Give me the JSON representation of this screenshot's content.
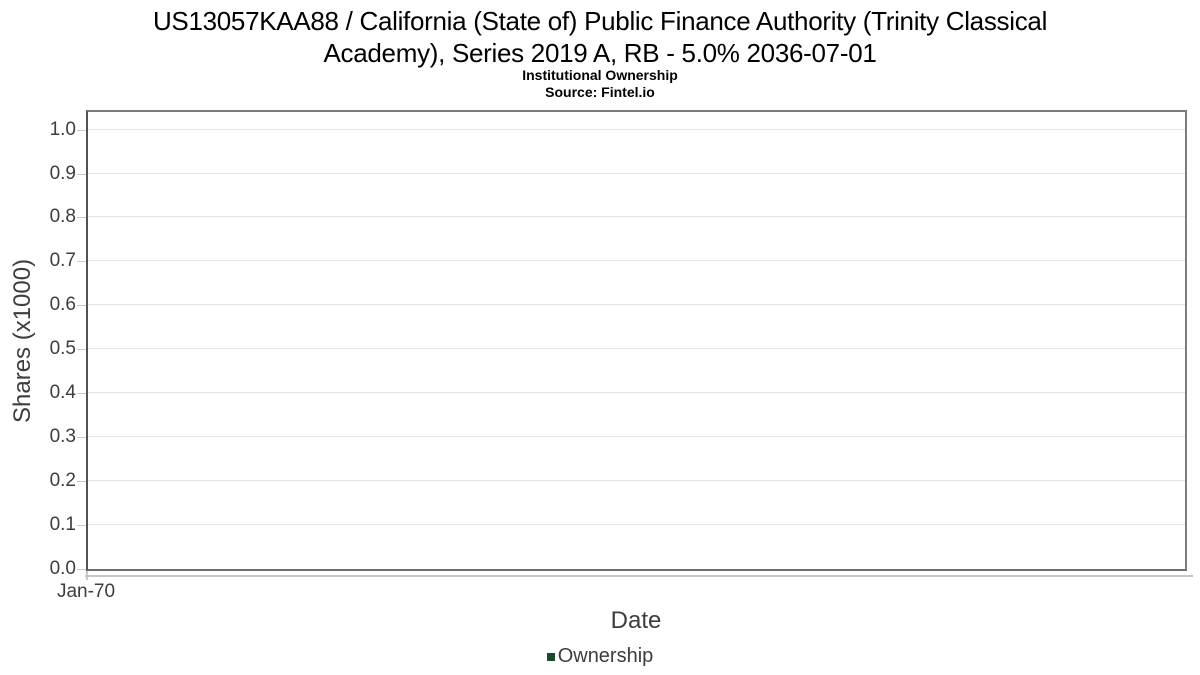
{
  "header": {
    "title_lines": [
      "US13057KAA88 / California (State of) Public Finance Authority (Trinity Classical",
      "Academy), Series 2019 A, RB - 5.0% 2036-07-01"
    ],
    "subtitle": "Institutional Ownership",
    "source": "Source: Fintel.io"
  },
  "chart_data": {
    "type": "line",
    "title": "US13057KAA88 / California (State of) Public Finance Authority (Trinity Classical Academy), Series 2019 A, RB - 5.0% 2036-07-01",
    "subtitle": "Institutional Ownership",
    "source": "Source: Fintel.io",
    "xlabel": "Date",
    "ylabel": "Shares (x1000)",
    "x_tick_labels": [
      "Jan-70"
    ],
    "y_tick_labels": [
      "0.0",
      "0.1",
      "0.2",
      "0.3",
      "0.4",
      "0.5",
      "0.6",
      "0.7",
      "0.8",
      "0.9",
      "1.0"
    ],
    "ylim": [
      0.0,
      1.04
    ],
    "grid": "horizontal",
    "legend": {
      "position": "bottom",
      "entries": [
        {
          "label": "Ownership",
          "color": "#1e4a2b"
        }
      ]
    },
    "series": [
      {
        "name": "Ownership",
        "x": [],
        "values": []
      }
    ]
  }
}
